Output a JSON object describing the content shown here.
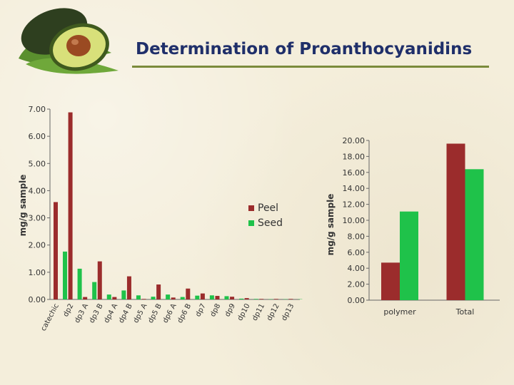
{
  "title": "Determination of Proanthocyanidins",
  "colors": {
    "peel": "#9b2c2c",
    "seed": "#1fc24a",
    "title": "#1f2f6a",
    "rule": "#7b8b3b"
  },
  "logo_icon": "avocado-icon",
  "chart_data": [
    {
      "type": "bar",
      "title": "",
      "xlabel": "",
      "ylabel": "mg/g sample",
      "ylim": [
        0,
        7
      ],
      "yticks": [
        "0.00",
        "1.00",
        "2.00",
        "3.00",
        "4.00",
        "5.00",
        "6.00",
        "7.00"
      ],
      "categories": [
        "catechic",
        "dp2",
        "dp3 A",
        "dp3 B",
        "dp4 A",
        "dp4 B",
        "dp5 A",
        "dp5 B",
        "dp6 A",
        "dp6 B",
        "dp7",
        "dp8",
        "dp9",
        "dp10",
        "dp11",
        "dp12",
        "dp13"
      ],
      "series": [
        {
          "name": "Peel",
          "values": [
            3.58,
            6.88,
            0.09,
            1.4,
            0.09,
            0.85,
            0.02,
            0.55,
            0.07,
            0.4,
            0.22,
            0.13,
            0.1,
            0.05,
            0.02,
            0.02,
            0.02
          ]
        },
        {
          "name": "Seed",
          "values": [
            1.76,
            1.13,
            0.64,
            0.18,
            0.33,
            0.15,
            0.1,
            0.18,
            0.09,
            0.14,
            0.15,
            0.12,
            0.03,
            0.02,
            0.01,
            0.01,
            0.01
          ]
        }
      ],
      "legend": "right",
      "grid": false
    },
    {
      "type": "bar",
      "title": "",
      "xlabel": "",
      "ylabel": "mg/g sample",
      "ylim": [
        0,
        20
      ],
      "yticks": [
        "0.00",
        "2.00",
        "4.00",
        "6.00",
        "8.00",
        "10.00",
        "12.00",
        "14.00",
        "16.00",
        "18.00",
        "20.00"
      ],
      "categories": [
        "polymer",
        "Total"
      ],
      "series": [
        {
          "name": "Peel",
          "values": [
            4.7,
            19.6
          ]
        },
        {
          "name": "Seed",
          "values": [
            11.1,
            16.4
          ]
        }
      ],
      "grid": false
    }
  ]
}
